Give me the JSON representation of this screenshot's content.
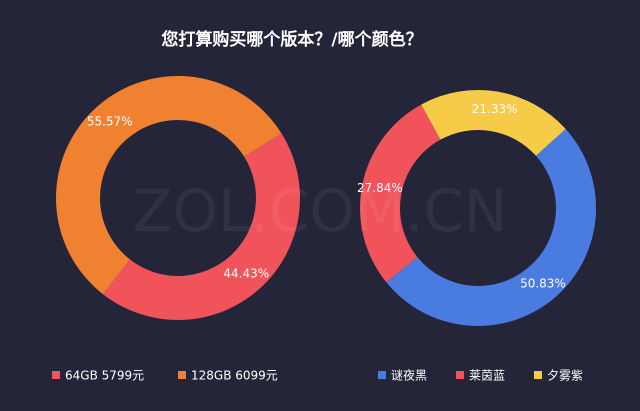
{
  "title": "您打算购买哪个版本？/哪个颜色？",
  "watermark": "ZOL.COM.CN",
  "chart_data": [
    {
      "type": "pie",
      "series": [
        {
          "name": "64GB 5799元",
          "color": "#f0535a",
          "values": [
            44.43
          ],
          "value_labels": [
            "44.43%"
          ]
        },
        {
          "name": "128GB 6099元",
          "color": "#ef8130",
          "values": [
            55.57
          ],
          "value_labels": [
            "55.57%"
          ]
        }
      ]
    },
    {
      "type": "pie",
      "series": [
        {
          "name": "谜夜黑",
          "color": "#4a7be0",
          "values": [
            50.83
          ],
          "value_labels": [
            "50.83%"
          ]
        },
        {
          "name": "莱茵蓝",
          "color": "#f0535a",
          "values": [
            27.84
          ],
          "value_labels": [
            "27.84%"
          ]
        },
        {
          "name": "夕雾紫",
          "color": "#f5cb47",
          "values": [
            21.33
          ],
          "value_labels": [
            "21.33%"
          ]
        }
      ]
    }
  ]
}
